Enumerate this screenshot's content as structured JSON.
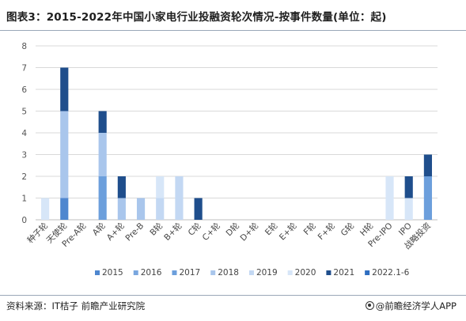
{
  "header": {
    "title": "图表3：2015-2022年中国小家电行业投融资轮次情况-按事件数量(单位：起)"
  },
  "footer": {
    "source": "资料来源：IT桔子 前瞻产业研究院",
    "brand": "@前瞻经济学人APP"
  },
  "chart_data": {
    "type": "bar",
    "stacked": true,
    "title": "图表3：2015-2022年中国小家电行业投融资轮次情况-按事件数量(单位：起)",
    "xlabel": "",
    "ylabel": "",
    "ylim": [
      0,
      8
    ],
    "yticks": [
      0,
      1,
      2,
      3,
      4,
      5,
      6,
      7,
      8
    ],
    "grid": true,
    "legend_position": "bottom",
    "categories": [
      "种子轮",
      "天使轮",
      "Pre-A轮",
      "A轮",
      "A+轮",
      "Pre-B",
      "B轮",
      "B+轮",
      "C轮",
      "C+轮",
      "D轮",
      "D+轮",
      "E轮",
      "E+轮",
      "F轮",
      "F+轮",
      "G轮",
      "H轮",
      "Pre-IPO",
      "IPO",
      "战略投资"
    ],
    "series": [
      {
        "name": "2015",
        "color": "#4f87cf",
        "values": [
          0,
          1,
          0,
          0,
          0,
          0,
          0,
          0,
          0,
          0,
          0,
          0,
          0,
          0,
          0,
          0,
          0,
          0,
          0,
          0,
          0
        ]
      },
      {
        "name": "2016",
        "color": "#7aa7df",
        "values": [
          0,
          0,
          0,
          0,
          0,
          0,
          0,
          0,
          0,
          0,
          0,
          0,
          0,
          0,
          0,
          0,
          0,
          0,
          0,
          0,
          0
        ]
      },
      {
        "name": "2017",
        "color": "#6c9fdc",
        "values": [
          0,
          0,
          0,
          2,
          0,
          0,
          0,
          0,
          0,
          0,
          0,
          0,
          0,
          0,
          0,
          0,
          0,
          0,
          0,
          0,
          2
        ]
      },
      {
        "name": "2018",
        "color": "#a9c6ec",
        "values": [
          0,
          4,
          0,
          2,
          1,
          1,
          0,
          0,
          0,
          0,
          0,
          0,
          0,
          0,
          0,
          0,
          0,
          0,
          0,
          0,
          0
        ]
      },
      {
        "name": "2019",
        "color": "#c3d8f3",
        "values": [
          0,
          0,
          0,
          0,
          0,
          0,
          1,
          2,
          0,
          0,
          0,
          0,
          0,
          0,
          0,
          0,
          0,
          0,
          0,
          0,
          0
        ]
      },
      {
        "name": "2020",
        "color": "#d7e6f8",
        "values": [
          1,
          0,
          0,
          0,
          0,
          0,
          1,
          0,
          0,
          0,
          0,
          0,
          0,
          0,
          0,
          0,
          0,
          0,
          2,
          1,
          0
        ]
      },
      {
        "name": "2021",
        "color": "#1f4e8c",
        "values": [
          0,
          2,
          0,
          1,
          1,
          0,
          0,
          0,
          1,
          0,
          0,
          0,
          0,
          0,
          0,
          0,
          0,
          0,
          0,
          1,
          1
        ]
      },
      {
        "name": "2022.1-6",
        "color": "#2f6ec0",
        "values": [
          0,
          0,
          0,
          0,
          0,
          0,
          0,
          0,
          0,
          0,
          0,
          0,
          0,
          0,
          0,
          0,
          0,
          0,
          0,
          0,
          0
        ]
      }
    ]
  }
}
